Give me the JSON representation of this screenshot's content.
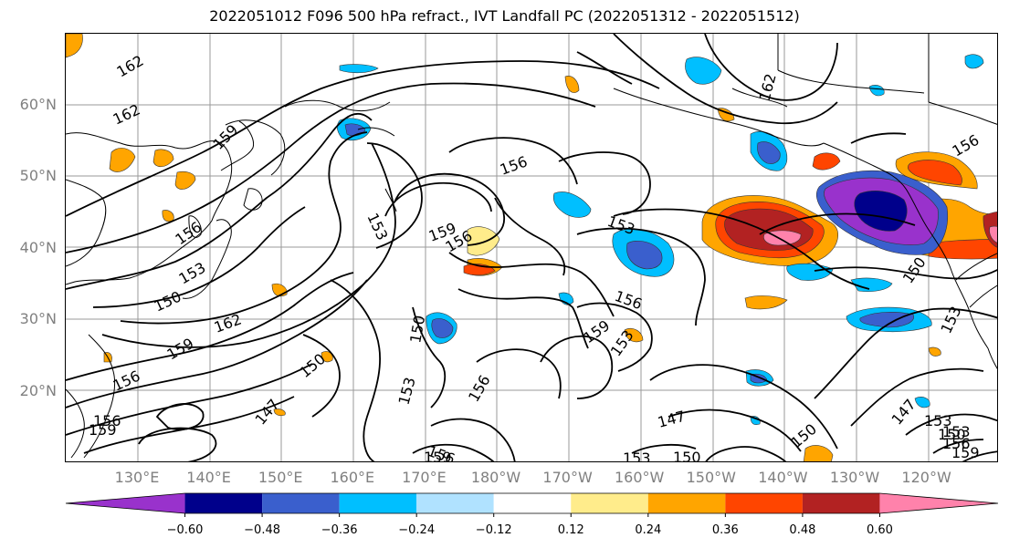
{
  "title": "2022051012 F096 500 hPa refract., IVT Landfall PC (2022051312 - 2022051512)",
  "lat_labels": [
    {
      "text": "60°N",
      "lat": 60
    },
    {
      "text": "50°N",
      "lat": 50
    },
    {
      "text": "40°N",
      "lat": 40
    },
    {
      "text": "30°N",
      "lat": 30
    },
    {
      "text": "20°N",
      "lat": 20
    }
  ],
  "lon_labels": [
    "130°E",
    "140°E",
    "150°E",
    "160°E",
    "170°E",
    "180°W",
    "170°W",
    "160°W",
    "150°W",
    "140°W",
    "130°W",
    "120°W"
  ],
  "contour_labels": [
    "162",
    "162",
    "159",
    "156",
    "153",
    "150",
    "162",
    "159",
    "156",
    "156",
    "159",
    "153",
    "156",
    "159",
    "156",
    "153",
    "150",
    "150",
    "153",
    "156",
    "159",
    "156",
    "153",
    "156",
    "159",
    "153",
    "147",
    "150",
    "150",
    "147",
    "153",
    "147",
    "150",
    "153",
    "156",
    "159",
    "153",
    "162",
    "156",
    "150"
  ],
  "colorbar": {
    "colors": [
      "#9932CC",
      "#00008B",
      "#3A5FCD",
      "#00BFFF",
      "#B0E2FF",
      "#FFFFFF",
      "#FFEC8B",
      "#FFA500",
      "#FF4500",
      "#B22222",
      "#FF82AB"
    ],
    "ticks": [
      "−0.60",
      "−0.48",
      "−0.36",
      "−0.24",
      "−0.12",
      "0.12",
      "0.24",
      "0.36",
      "0.48",
      "0.60"
    ]
  }
}
